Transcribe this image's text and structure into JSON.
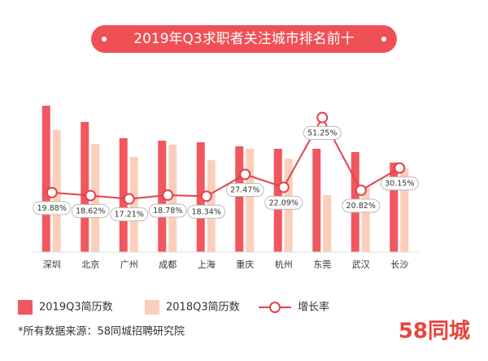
{
  "chart_data": {
    "type": "bar",
    "title": "2019年Q3求职者关注城市排名前十",
    "categories": [
      "深圳",
      "北京",
      "广州",
      "成都",
      "上海",
      "重庆",
      "杭州",
      "东莞",
      "武汉",
      "长沙"
    ],
    "ylim": [
      0,
      200
    ],
    "y2lim": [
      -5,
      63
    ],
    "series": [
      {
        "name": "2019Q3简历数",
        "color": "#f0575f",
        "values": [
          180,
          160,
          140,
          137,
          135,
          130,
          127,
          127,
          123,
          110
        ]
      },
      {
        "name": "2018Q3简历数",
        "color": "#fbcfbb",
        "values": [
          150,
          133,
          117,
          132,
          113,
          127,
          115,
          70,
          80,
          103
        ]
      },
      {
        "name": "增长率",
        "color": "#e0434b",
        "type": "line",
        "axis": "y2",
        "values": [
          19.88,
          18.62,
          17.21,
          18.78,
          18.34,
          27.47,
          22.09,
          51.25,
          20.82,
          30.15
        ],
        "value_labels": [
          "19.88%",
          "18.62%",
          "17.21%",
          "18.78%",
          "18.34%",
          "27.47%",
          "22.09%",
          "51.25%",
          "20.82%",
          "30.15%"
        ]
      }
    ],
    "source": "*所有数据来源：58同城招聘研究院",
    "logo": "58同城"
  }
}
